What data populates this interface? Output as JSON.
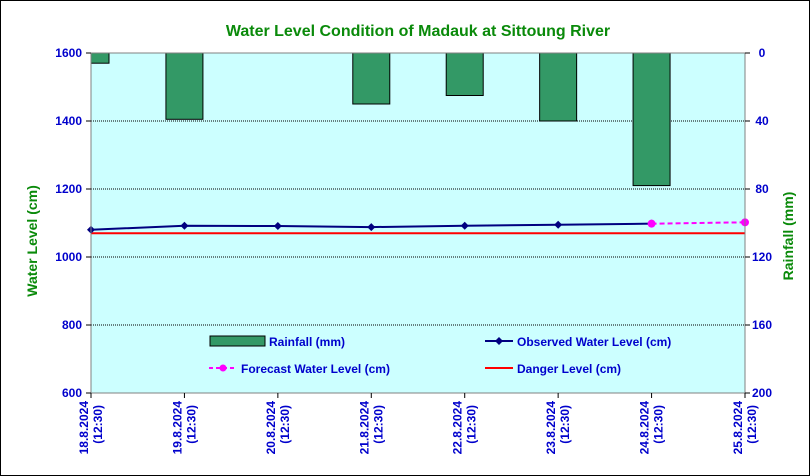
{
  "chart_data": {
    "type": "bar+line",
    "title": "Water Level Condition of Madauk at Sittoung River",
    "ylabel_left": "Water Level (cm)",
    "ylabel_right": "Rainfall (mm)",
    "ylim_left": [
      600,
      1600
    ],
    "yticks_left": [
      600,
      800,
      1000,
      1200,
      1400,
      1600
    ],
    "ylim_right_inverted": [
      0,
      200
    ],
    "yticks_right": [
      0,
      40,
      80,
      120,
      160,
      200
    ],
    "grid": "horizontal",
    "categories": [
      {
        "date": "18.8.2024",
        "time": "(12:30)"
      },
      {
        "date": "19.8.2024",
        "time": "(12:30)"
      },
      {
        "date": "20.8.2024",
        "time": "(12:30)"
      },
      {
        "date": "21.8.2024",
        "time": "(12:30)"
      },
      {
        "date": "22.8.2024",
        "time": "(12:30)"
      },
      {
        "date": "23.8.2024",
        "time": "(12:30)"
      },
      {
        "date": "24.8.2024",
        "time": "(12:30)"
      },
      {
        "date": "25.8.2024",
        "time": "(12:30)"
      }
    ],
    "rainfall": {
      "name": "Rainfall (mm)",
      "color": "#339966",
      "values": [
        6,
        39,
        0,
        30,
        25,
        40,
        78,
        null
      ]
    },
    "observed": {
      "name": "Observed Water Level (cm)",
      "color": "#000080",
      "values": [
        1080,
        1092,
        1091,
        1088,
        1092,
        1095,
        1098,
        null
      ]
    },
    "forecast": {
      "name": "Forecast Water Level (cm)",
      "color": "#ff00ff",
      "values": [
        null,
        null,
        null,
        null,
        null,
        null,
        1098,
        1102
      ]
    },
    "danger": {
      "name": "Danger Level (cm)",
      "color": "#ff0000",
      "value": 1070
    }
  }
}
